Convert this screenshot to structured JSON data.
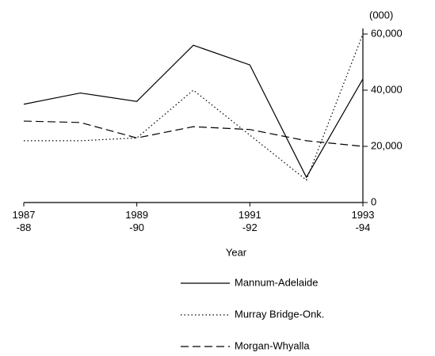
{
  "chart_data": {
    "type": "line",
    "x_label": "Year",
    "y_unit": "(000)",
    "categories": [
      "1987\n-88",
      null,
      "1989\n-90",
      null,
      "1991\n-92",
      null,
      "1993\n-94"
    ],
    "series": [
      {
        "name": "Mannum-Adelaide",
        "color": "#000000",
        "dash": "solid",
        "values": [
          35000,
          39000,
          36000,
          56000,
          49000,
          9000,
          44000
        ]
      },
      {
        "name": "Murray Bridge-Onk.",
        "color": "#000000",
        "dash": "dotted",
        "values": [
          22000,
          22000,
          23000,
          40000,
          24000,
          8000,
          60000
        ]
      },
      {
        "name": "Morgan-Whyalla",
        "color": "#000000",
        "dash": "dashed",
        "values": [
          29000,
          28500,
          23000,
          27000,
          26000,
          22000,
          20000
        ]
      }
    ],
    "ylim": [
      0,
      60000
    ],
    "yticks": [
      0,
      {
        "value": 20000,
        "label": "20,000"
      },
      {
        "value": 40000,
        "label": "40,000"
      },
      {
        "value": 60000,
        "label": "60,000"
      }
    ],
    "y_axis_side": "right",
    "grid": false,
    "legend": "bottom"
  }
}
